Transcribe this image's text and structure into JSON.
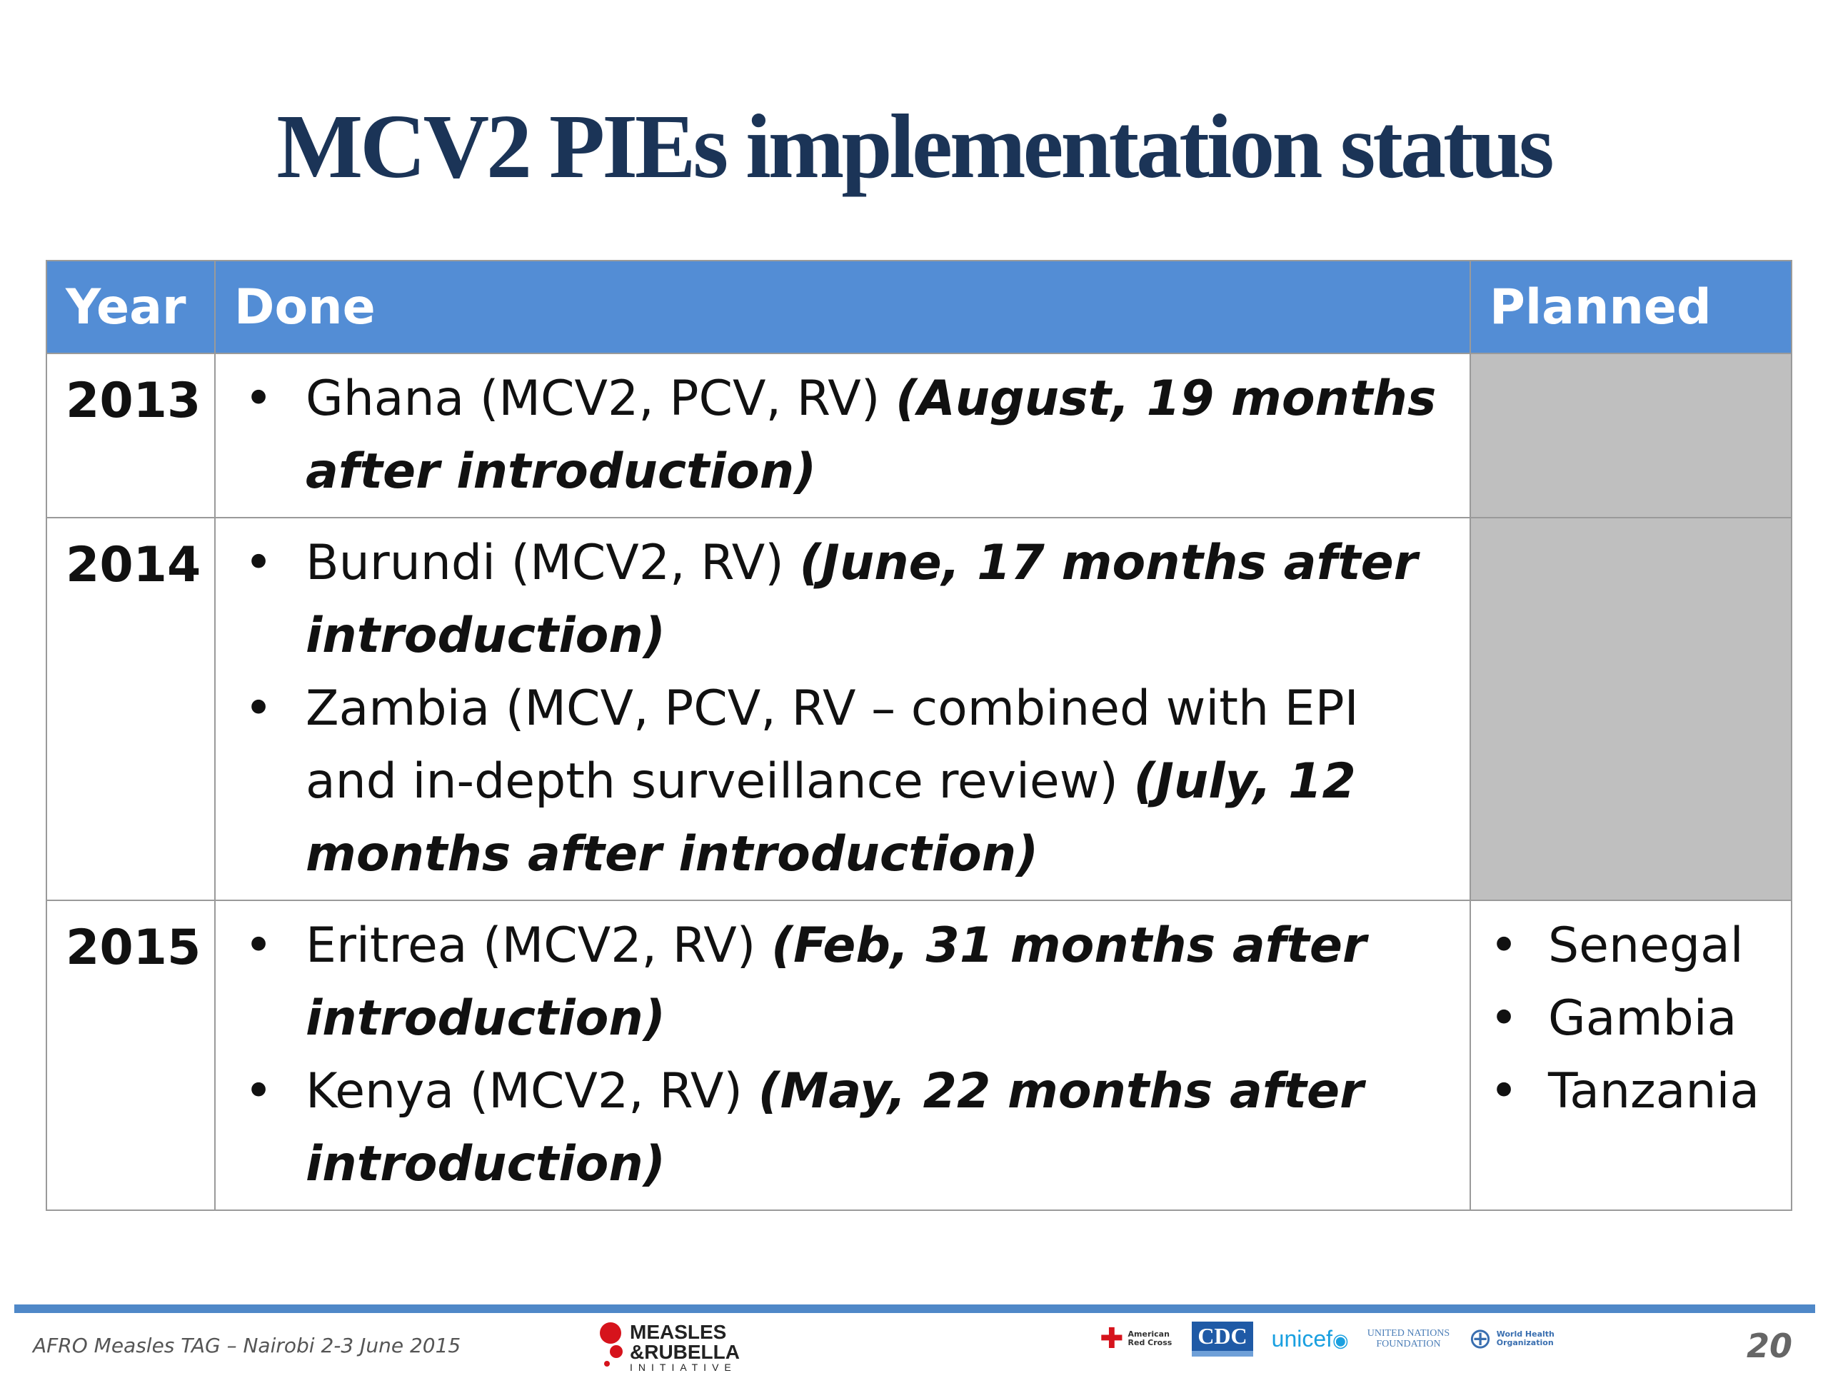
{
  "title": "MCV2 PIEs implementation status",
  "table": {
    "headers": {
      "year": "Year",
      "done": "Done",
      "planned": "Planned"
    },
    "rows": [
      {
        "year": "2013",
        "done": [
          {
            "text": "Ghana (MCV2, PCV, RV)",
            "detail": "(August, 19 months after introduction)"
          }
        ],
        "planned": []
      },
      {
        "year": "2014",
        "done": [
          {
            "text": "Burundi (MCV2, RV)",
            "detail": "(June, 17 months after introduction)"
          },
          {
            "text": "Zambia (MCV, PCV, RV – combined with EPI and in-depth surveillance review)",
            "detail": "(July, 12 months after introduction)"
          }
        ],
        "planned": []
      },
      {
        "year": "2015",
        "done": [
          {
            "text": "Eritrea (MCV2, RV)",
            "detail": "(Feb, 31 months after introduction)"
          },
          {
            "text": "Kenya (MCV2, RV)",
            "detail": "(May, 22 months after introduction)"
          }
        ],
        "planned": [
          "Senegal",
          "Gambia",
          "Tanzania"
        ]
      }
    ],
    "bullet": "•"
  },
  "footer": {
    "event": "AFRO Measles TAG – Nairobi 2-3 June 2015",
    "page_number": "20",
    "measles_logo": {
      "line1": "MEASLES",
      "line2": "&RUBELLA",
      "line3": "INITIATIVE"
    },
    "partners": {
      "red_cross": [
        "American",
        "Red Cross"
      ],
      "cdc": "CDC",
      "unicef": "unicef",
      "un_foundation": [
        "UNITED NATIONS",
        "FOUNDATION"
      ],
      "who": [
        "World Health",
        "Organization"
      ]
    }
  },
  "colors": {
    "title": "#1b3457",
    "header_bg": "#538dd5",
    "empty_cell": "#bfbfbf",
    "footer_rule": "#4f88c8"
  }
}
